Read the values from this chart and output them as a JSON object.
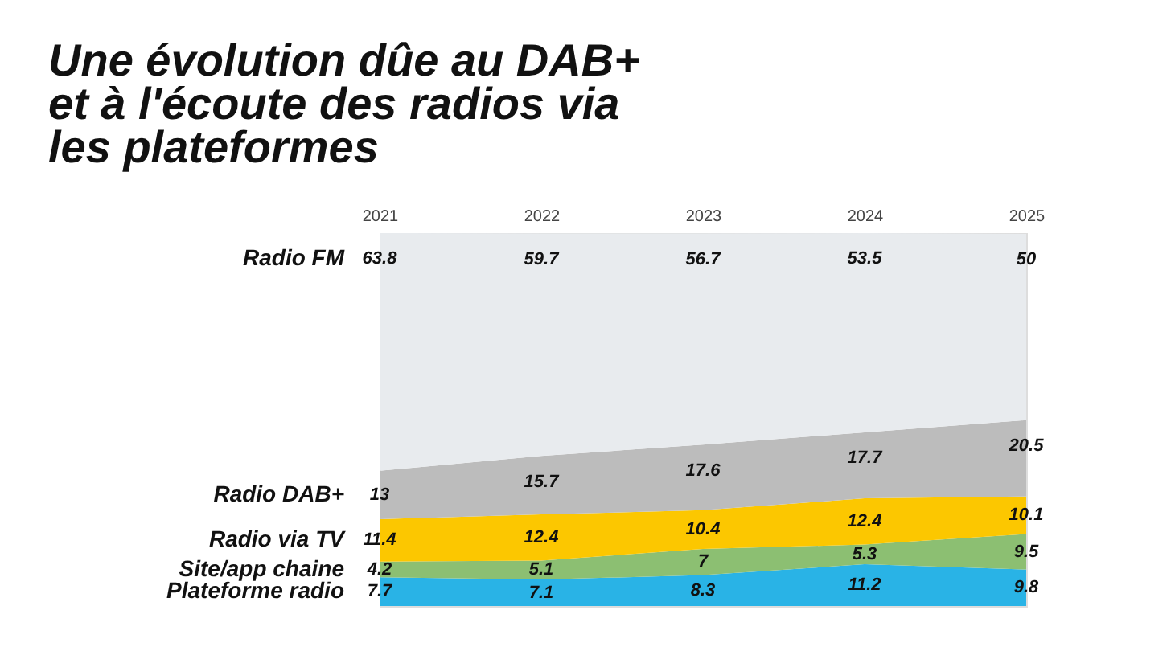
{
  "chart_data": {
    "type": "area",
    "title": "Une évolution dûe au DAB+\net à l'écoute des radios via\nles plateformes",
    "categories": [
      "2021",
      "2022",
      "2023",
      "2024",
      "2025"
    ],
    "series": [
      {
        "name": "Plateforme radio",
        "color": "#29b3e6",
        "values": [
          7.7,
          7.1,
          8.3,
          11.2,
          9.8
        ]
      },
      {
        "name": "Site/app chaine",
        "color": "#8cbf72",
        "values": [
          4.2,
          5.1,
          7,
          5.3,
          9.5
        ]
      },
      {
        "name": "Radio via TV",
        "color": "#fcc700",
        "values": [
          11.4,
          12.4,
          10.4,
          12.4,
          10.1
        ]
      },
      {
        "name": "Radio DAB+",
        "color": "#bcbcbc",
        "values": [
          13,
          15.7,
          17.6,
          17.7,
          20.5
        ]
      },
      {
        "name": "Radio FM",
        "color": "#e8ebee",
        "values": [
          63.8,
          59.7,
          56.7,
          53.5,
          50
        ]
      }
    ],
    "stacked": true,
    "data_labels": true,
    "legend": false,
    "tick_labels": "x"
  }
}
